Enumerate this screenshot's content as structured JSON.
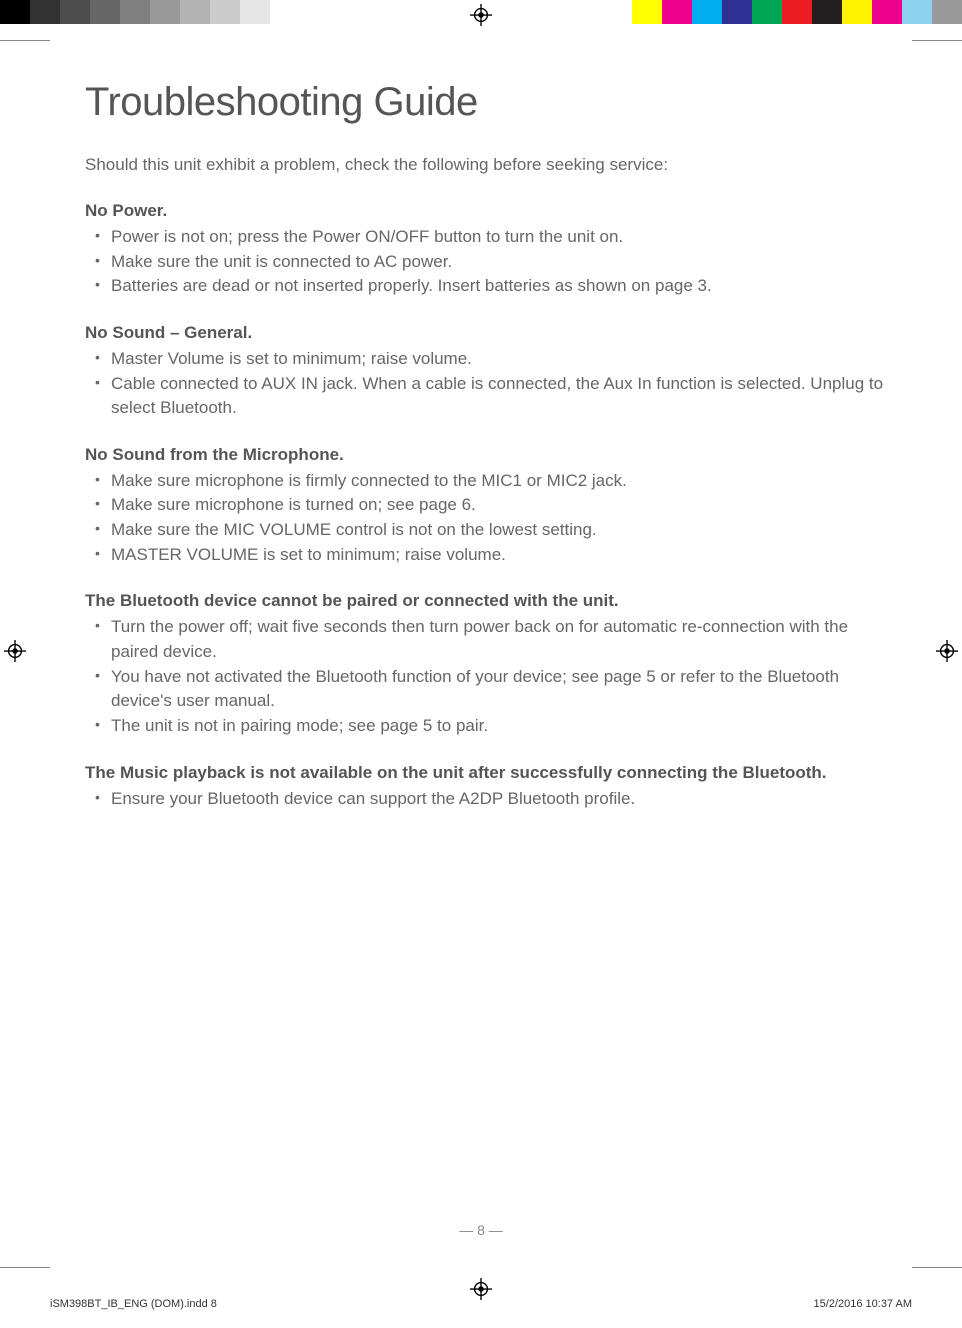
{
  "colorbars": {
    "left": [
      "#000000",
      "#333333",
      "#4d4d4d",
      "#666666",
      "#808080",
      "#999999",
      "#b3b3b3",
      "#cccccc",
      "#e6e6e6",
      "#ffffff",
      "#ffffff"
    ],
    "right": [
      "#ffff00",
      "#ec008c",
      "#00aeef",
      "#2e3192",
      "#00a651",
      "#ed1c24",
      "#231f20",
      "#fff200",
      "#ec008c",
      "#8cd3f0",
      "#999999"
    ]
  },
  "title": "Troubleshooting Guide",
  "intro": "Should this unit exhibit a problem, check the following before seeking service:",
  "sections": [
    {
      "heading": "No Power.",
      "items": [
        "Power is not on; press the Power ON/OFF button to turn the unit on.",
        "Make sure the unit is connected to AC power.",
        "Batteries are dead or not inserted properly. Insert batteries as shown on page 3."
      ]
    },
    {
      "heading": "No Sound – General.",
      "items": [
        "Master Volume is set to minimum; raise volume.",
        "Cable connected to AUX IN jack. When a cable is connected, the Aux In function is selected. Unplug to select Bluetooth."
      ]
    },
    {
      "heading": "No Sound from the Microphone.",
      "items": [
        "Make sure microphone is firmly connected to the MIC1 or MIC2 jack.",
        "Make sure microphone is turned on; see page 6.",
        "Make sure the MIC VOLUME control is not on the lowest setting.",
        "MASTER VOLUME is set to minimum; raise volume."
      ]
    },
    {
      "heading": "The Bluetooth device cannot be paired or connected with the unit.",
      "items": [
        "Turn the power off; wait five seconds then turn power back on for automatic re-connection with the paired device.",
        "You have not activated the Bluetooth function of your device; see page 5 or refer to the Bluetooth device's user manual.",
        "The unit is not in pairing mode; see page 5 to pair."
      ]
    },
    {
      "heading": "The Music playback is not available on the unit after successfully connecting the Bluetooth.",
      "items": [
        "Ensure your Bluetooth device can support the A2DP Bluetooth profile."
      ]
    }
  ],
  "page_number": "— 8 —",
  "footer": {
    "file": "iSM398BT_IB_ENG (DOM).indd   8",
    "timestamp": "15/2/2016   10:37 AM"
  }
}
